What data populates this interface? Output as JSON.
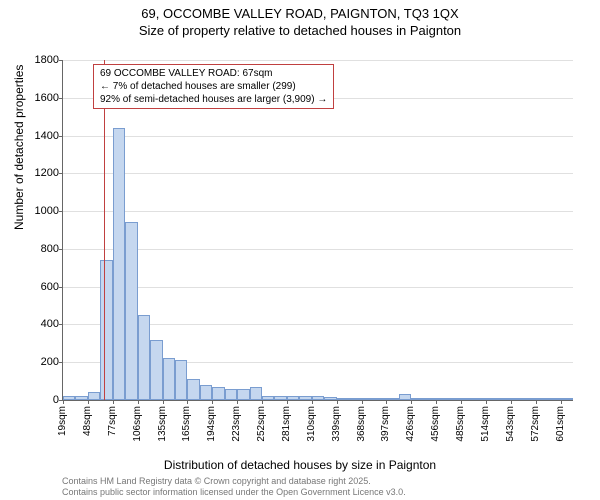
{
  "title_line1": "69, OCCOMBE VALLEY ROAD, PAIGNTON, TQ3 1QX",
  "title_line2": "Size of property relative to detached houses in Paignton",
  "ylabel": "Number of detached properties",
  "xlabel": "Distribution of detached houses by size in Paignton",
  "footnote_line1": "Contains HM Land Registry data © Crown copyright and database right 2025.",
  "footnote_line2": "Contains public sector information licensed under the Open Government Licence v3.0.",
  "callout_line1": "69 OCCOMBE VALLEY ROAD: 67sqm",
  "callout_line2": "← 7% of detached houses are smaller (299)",
  "callout_line3": "92% of semi-detached houses are larger (3,909) →",
  "chart": {
    "type": "histogram",
    "ylim": [
      0,
      1800
    ],
    "ytick_step": 200,
    "background_color": "#ffffff",
    "grid_color": "#e0e0e0",
    "bar_fill": "#c5d7ef",
    "bar_stroke": "#7a9dd0",
    "marker_color": "#c04040",
    "marker_x": 67,
    "x_start": 19,
    "x_bin_width": 14.5,
    "values": [
      20,
      20,
      40,
      740,
      1440,
      940,
      450,
      320,
      220,
      210,
      110,
      80,
      70,
      60,
      60,
      70,
      20,
      20,
      20,
      20,
      20,
      15,
      10,
      10,
      10,
      10,
      10,
      30,
      10,
      10,
      5,
      5,
      5,
      5,
      5,
      5,
      5,
      5,
      5,
      5,
      5
    ],
    "x_tick_labels": [
      "19sqm",
      "48sqm",
      "77sqm",
      "106sqm",
      "135sqm",
      "165sqm",
      "194sqm",
      "223sqm",
      "252sqm",
      "281sqm",
      "310sqm",
      "339sqm",
      "368sqm",
      "397sqm",
      "426sqm",
      "456sqm",
      "485sqm",
      "514sqm",
      "543sqm",
      "572sqm",
      "601sqm"
    ]
  }
}
